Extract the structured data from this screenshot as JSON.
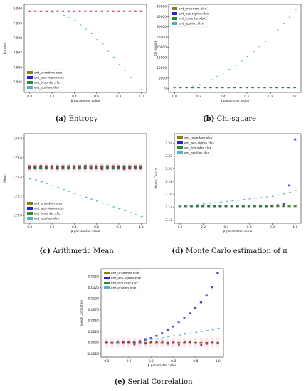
{
  "figure": {
    "captions": [
      {
        "tag": "(a)",
        "text": "Entropy"
      },
      {
        "tag": "(b)",
        "text": "Chi-square"
      },
      {
        "tag": "(c)",
        "text": "Arithmetic Mean"
      },
      {
        "tag": "(d)",
        "text": "Monte Carlo estimation of π"
      },
      {
        "tag": "(e)",
        "text": "Serial Correlation"
      }
    ]
  },
  "colors": {
    "urandom": "#8b7d1a",
    "aes_sigma": "#2a1fd6",
    "tcounter": "#2e8b2e",
    "epsilon": "#4fb3c8",
    "outlier_red": "#e0102a",
    "box_pink": "#ff5fa0"
  },
  "chart_data": [
    {
      "id": "entropy",
      "type": "scatter",
      "title": "",
      "xlabel": "β parameter value",
      "ylabel": "Entropy",
      "xlim": [
        -0.05,
        1.05
      ],
      "ylim": [
        7.9943,
        8.0003
      ],
      "x_ticks": [
        "0.0",
        "0.2",
        "0.4",
        "0.6",
        "0.8",
        "1.0"
      ],
      "y_ticks": [
        "7.995",
        "7.996",
        "7.997",
        "7.998",
        "7.999",
        "8.000"
      ],
      "y_tick_values": [
        7.995,
        7.996,
        7.997,
        7.998,
        7.999,
        8.0
      ],
      "legend": {
        "location": "lower-left",
        "entries": [
          "ent_urandom.xlsx",
          "ent_aes-sigma.xlsx",
          "ent_tcounter.xlsx",
          "ent_epsilon.xlsx"
        ]
      },
      "x": [
        0.0,
        0.05,
        0.1,
        0.15,
        0.2,
        0.25,
        0.3,
        0.35,
        0.4,
        0.45,
        0.5,
        0.55,
        0.6,
        0.65,
        0.7,
        0.75,
        0.8,
        0.85,
        0.9,
        0.95,
        1.0
      ],
      "series": [
        {
          "name": "ent_urandom.xlsx",
          "values": [
            7.99983,
            7.99983,
            7.99983,
            7.99983,
            7.99983,
            7.99983,
            7.99983,
            7.99983,
            7.99983,
            7.99983,
            7.99983,
            7.99983,
            7.99983,
            7.99983,
            7.99983,
            7.99983,
            7.99983,
            7.99983,
            7.99983,
            7.99983,
            7.99983
          ]
        },
        {
          "name": "ent_aes-sigma.xlsx",
          "values": [
            7.99983,
            7.99983,
            7.99983,
            7.99983,
            7.99983,
            7.99983,
            7.99983,
            7.99983,
            7.99983,
            7.99983,
            7.99983,
            7.99983,
            7.99983,
            7.99983,
            7.99983,
            7.99983,
            7.99983,
            7.99983,
            7.99983,
            7.99983,
            7.99983
          ]
        },
        {
          "name": "ent_tcounter.xlsx",
          "values": [
            7.99983,
            7.99983,
            7.99983,
            7.99983,
            7.99983,
            7.99983,
            7.99983,
            7.99983,
            7.99983,
            7.99983,
            7.99983,
            7.99983,
            7.99983,
            7.99983,
            7.99983,
            7.99983,
            7.99983,
            7.99983,
            7.99983,
            7.99983,
            7.99983
          ]
        },
        {
          "name": "ent_epsilon.xlsx",
          "values": [
            7.99983,
            7.99983,
            7.99982,
            7.9998,
            7.99975,
            7.99965,
            7.99955,
            7.9994,
            7.9992,
            7.9989,
            7.9986,
            7.9983,
            7.9979,
            7.9976,
            7.9971,
            7.9967,
            7.9962,
            7.9958,
            7.9953,
            7.9948,
            7.9945
          ]
        }
      ]
    },
    {
      "id": "chi-square",
      "type": "scatter",
      "title": "",
      "xlabel": "β parameter value",
      "ylabel": "Chi-square",
      "xlim": [
        -0.05,
        1.05
      ],
      "ylim": [
        -2000,
        41000
      ],
      "x_ticks": [
        "0.0",
        "0.2",
        "0.4",
        "0.6",
        "0.8",
        "1.0"
      ],
      "y_ticks": [
        "0",
        "5000",
        "10000",
        "15000",
        "20000",
        "25000",
        "30000",
        "35000",
        "40000"
      ],
      "y_tick_values": [
        0,
        5000,
        10000,
        15000,
        20000,
        25000,
        30000,
        35000,
        40000
      ],
      "legend": {
        "location": "top-left",
        "entries": [
          "ent_urandom.xlsx",
          "ent_aes-sigma.xlsx",
          "ent_tcounter.xlsx",
          "ent_epsilon.xlsx"
        ]
      },
      "x": [
        0.0,
        0.05,
        0.1,
        0.15,
        0.2,
        0.25,
        0.3,
        0.35,
        0.4,
        0.45,
        0.5,
        0.55,
        0.6,
        0.65,
        0.7,
        0.75,
        0.8,
        0.85,
        0.9,
        0.95,
        1.0
      ],
      "series": [
        {
          "name": "ent_urandom.xlsx",
          "values": [
            255,
            255,
            255,
            255,
            255,
            255,
            255,
            255,
            255,
            255,
            255,
            255,
            255,
            255,
            255,
            255,
            255,
            255,
            255,
            255,
            255
          ]
        },
        {
          "name": "ent_aes-sigma.xlsx",
          "values": [
            255,
            255,
            255,
            255,
            255,
            255,
            255,
            255,
            255,
            255,
            255,
            255,
            255,
            255,
            255,
            255,
            255,
            255,
            255,
            255,
            255
          ]
        },
        {
          "name": "ent_tcounter.xlsx",
          "values": [
            255,
            255,
            255,
            255,
            255,
            255,
            255,
            255,
            255,
            255,
            255,
            255,
            255,
            255,
            255,
            255,
            255,
            255,
            255,
            255,
            255
          ]
        },
        {
          "name": "ent_epsilon.xlsx",
          "values": [
            255,
            300,
            600,
            1100,
            1900,
            3000,
            4300,
            5800,
            7400,
            9200,
            11200,
            13300,
            15500,
            17900,
            20300,
            22900,
            25600,
            28500,
            31500,
            34700,
            38500
          ]
        }
      ]
    },
    {
      "id": "arithmetic-mean",
      "type": "scatter",
      "title": "",
      "xlabel": "β parameter value",
      "ylabel": "Mean",
      "xlim": [
        -0.05,
        1.05
      ],
      "ylim": [
        126.92,
        127.85
      ],
      "x_ticks": [
        "0.0",
        "0.2",
        "0.4",
        "0.6",
        "0.8",
        "1.0"
      ],
      "y_ticks": [
        "127.0",
        "127.2",
        "127.4",
        "127.6",
        "127.8"
      ],
      "y_tick_values": [
        127.0,
        127.2,
        127.4,
        127.6,
        127.8
      ],
      "legend": {
        "location": "lower-left",
        "entries": [
          "ent_urandom.xlsx",
          "ent_aes-sigma.xlsx",
          "ent_tcounter.xlsx",
          "ent_epsilon.xlsx"
        ]
      },
      "x": [
        0.0,
        0.05,
        0.1,
        0.15,
        0.2,
        0.25,
        0.3,
        0.35,
        0.4,
        0.45,
        0.5,
        0.55,
        0.6,
        0.65,
        0.7,
        0.75,
        0.8,
        0.85,
        0.9,
        0.95,
        1.0
      ],
      "series": [
        {
          "name": "ent_urandom.xlsx",
          "values": [
            127.5,
            127.5,
            127.5,
            127.5,
            127.5,
            127.5,
            127.5,
            127.5,
            127.5,
            127.5,
            127.5,
            127.5,
            127.5,
            127.5,
            127.5,
            127.5,
            127.5,
            127.5,
            127.5,
            127.5,
            127.5
          ]
        },
        {
          "name": "ent_aes-sigma.xlsx",
          "values": [
            127.5,
            127.5,
            127.5,
            127.5,
            127.5,
            127.5,
            127.5,
            127.5,
            127.5,
            127.5,
            127.5,
            127.5,
            127.5,
            127.5,
            127.5,
            127.5,
            127.5,
            127.5,
            127.5,
            127.5,
            127.5
          ]
        },
        {
          "name": "ent_tcounter.xlsx",
          "values": [
            127.5,
            127.5,
            127.5,
            127.5,
            127.5,
            127.5,
            127.5,
            127.5,
            127.5,
            127.5,
            127.5,
            127.5,
            127.5,
            127.5,
            127.5,
            127.5,
            127.5,
            127.5,
            127.5,
            127.5,
            127.5
          ]
        },
        {
          "name": "ent_epsilon.xlsx",
          "values": [
            127.38,
            127.37,
            127.35,
            127.33,
            127.31,
            127.29,
            127.27,
            127.25,
            127.23,
            127.21,
            127.19,
            127.17,
            127.15,
            127.13,
            127.11,
            127.09,
            127.07,
            127.05,
            127.03,
            127.01,
            126.99
          ]
        }
      ]
    },
    {
      "id": "monte-carlo-pi",
      "type": "scatter",
      "title": "",
      "xlabel": "β parameter value",
      "ylabel": "Monte Carlo π",
      "xlim": [
        -0.05,
        1.05
      ],
      "ylim": [
        3.115,
        3.255
      ],
      "x_ticks": [
        "0.0",
        "0.2",
        "0.4",
        "0.6",
        "0.8",
        "1.0"
      ],
      "y_ticks": [
        "3.12",
        "3.14",
        "3.16",
        "3.18",
        "3.20",
        "3.22",
        "3.24"
      ],
      "y_tick_values": [
        3.12,
        3.14,
        3.16,
        3.18,
        3.2,
        3.22,
        3.24
      ],
      "legend": {
        "location": "top-left",
        "entries": [
          "ent_urandom.xlsx",
          "ent_aes-sigma.xlsx",
          "ent_tcounter.xlsx",
          "ent_epsilon.xlsx"
        ]
      },
      "x": [
        0.0,
        0.05,
        0.1,
        0.15,
        0.2,
        0.25,
        0.3,
        0.35,
        0.4,
        0.45,
        0.5,
        0.55,
        0.6,
        0.65,
        0.7,
        0.75,
        0.8,
        0.85,
        0.9,
        0.95,
        1.0
      ],
      "series": [
        {
          "name": "ent_urandom.xlsx",
          "values": [
            3.1416,
            3.1416,
            3.1416,
            3.1416,
            3.1416,
            3.1416,
            3.1416,
            3.1416,
            3.1416,
            3.1416,
            3.1416,
            3.1416,
            3.1416,
            3.1416,
            3.1416,
            3.1416,
            3.1416,
            3.1416,
            3.1416,
            3.1416,
            3.1416
          ]
        },
        {
          "name": "ent_aes-sigma.xlsx",
          "values": [
            3.1416,
            3.1416,
            3.1416,
            3.1416,
            3.1416,
            3.1416,
            3.1416,
            3.1416,
            3.1416,
            3.1416,
            3.1416,
            3.1416,
            3.1416,
            3.1416,
            3.1416,
            3.1416,
            3.142,
            3.143,
            3.145,
            3.174,
            3.246
          ]
        },
        {
          "name": "ent_tcounter.xlsx",
          "values": [
            3.1416,
            3.1416,
            3.1416,
            3.1416,
            3.1416,
            3.1416,
            3.1416,
            3.1416,
            3.1416,
            3.1416,
            3.1416,
            3.1416,
            3.1416,
            3.1416,
            3.1416,
            3.1416,
            3.1416,
            3.1416,
            3.1416,
            3.1416,
            3.1416
          ]
        },
        {
          "name": "ent_epsilon.xlsx",
          "values": [
            3.1416,
            3.142,
            3.143,
            3.144,
            3.145,
            3.146,
            3.147,
            3.148,
            3.149,
            3.15,
            3.151,
            3.152,
            3.153,
            3.154,
            3.155,
            3.156,
            3.157,
            3.159,
            3.161,
            3.163,
            3.166
          ]
        }
      ]
    },
    {
      "id": "serial-correlation",
      "type": "scatter",
      "title": "",
      "xlabel": "β parameter value",
      "ylabel": "Serial Correlation",
      "xlim": [
        -0.05,
        1.05
      ],
      "ylim": [
        -0.0032,
        0.0168
      ],
      "x_ticks": [
        "0.0",
        "0.2",
        "0.4",
        "0.6",
        "0.8",
        "1.0"
      ],
      "y_ticks": [
        "-0.0025",
        "0.0000",
        "0.0025",
        "0.0050",
        "0.0075",
        "0.0100",
        "0.0125",
        "0.0150"
      ],
      "y_tick_values": [
        -0.0025,
        0.0,
        0.0025,
        0.005,
        0.0075,
        0.01,
        0.0125,
        0.015
      ],
      "legend": {
        "location": "top-left",
        "entries": [
          "ent_urandom.xlsx",
          "ent_aes-sigma.xlsx",
          "ent_tcounter.xlsx",
          "ent_epsilon.xlsx"
        ]
      },
      "x": [
        0.0,
        0.05,
        0.1,
        0.15,
        0.2,
        0.25,
        0.3,
        0.35,
        0.4,
        0.45,
        0.5,
        0.55,
        0.6,
        0.65,
        0.7,
        0.75,
        0.8,
        0.85,
        0.9,
        0.95,
        1.0
      ],
      "series": [
        {
          "name": "ent_urandom.xlsx",
          "values": [
            0.0,
            0.0,
            0.0,
            0.0,
            0.0,
            0.0,
            0.0,
            0.0,
            0.0,
            0.0,
            0.0,
            0.0,
            0.0,
            0.0,
            0.0,
            0.0,
            0.0,
            0.0,
            0.0,
            0.0,
            0.0
          ]
        },
        {
          "name": "ent_aes-sigma.xlsx",
          "values": [
            0.0,
            0.0,
            0.0,
            0.0,
            0.0001,
            0.0002,
            0.0004,
            0.0007,
            0.0011,
            0.0016,
            0.0022,
            0.0029,
            0.0037,
            0.0046,
            0.0056,
            0.0067,
            0.0079,
            0.0092,
            0.0107,
            0.0126,
            0.0158
          ]
        },
        {
          "name": "ent_tcounter.xlsx",
          "values": [
            0.0,
            0.0,
            0.0,
            0.0,
            0.0,
            0.0,
            0.0,
            0.0,
            0.0,
            0.0,
            0.0,
            0.0,
            0.0,
            0.0,
            0.0,
            0.0,
            0.0,
            0.0,
            0.0,
            0.0,
            0.0
          ]
        },
        {
          "name": "ent_epsilon.xlsx",
          "values": [
            0.0,
            0.0,
            0.0001,
            0.0001,
            0.0002,
            0.0003,
            0.0004,
            0.0006,
            0.0008,
            0.001,
            0.0012,
            0.0014,
            0.0016,
            0.0018,
            0.002,
            0.0022,
            0.0024,
            0.0026,
            0.0028,
            0.003,
            0.0032
          ]
        }
      ]
    }
  ]
}
